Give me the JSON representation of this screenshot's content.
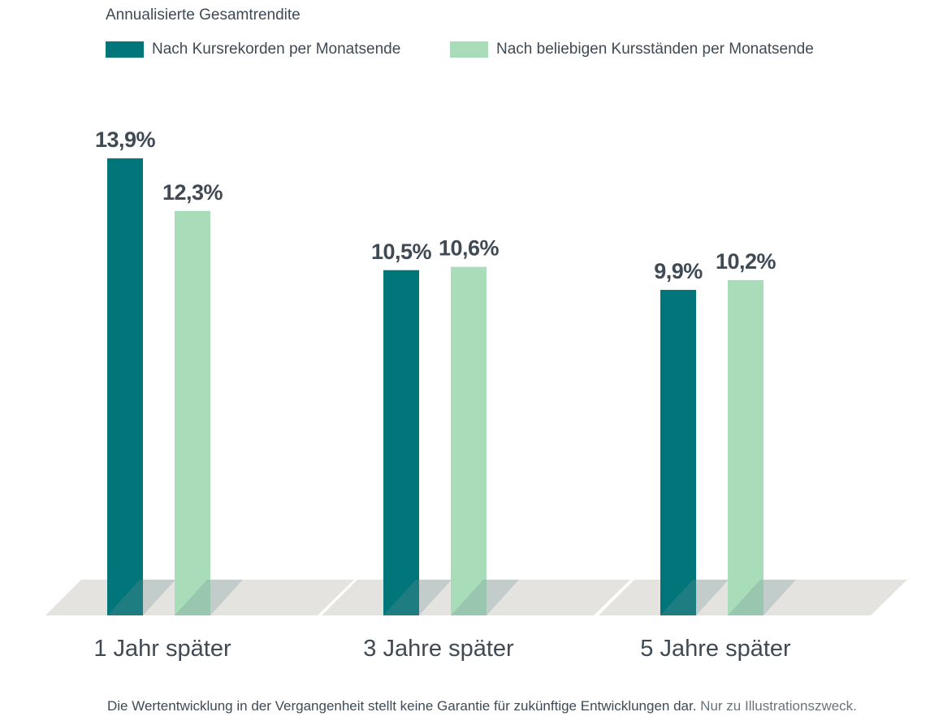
{
  "chart_data": {
    "type": "bar",
    "title": "Annualisierte Gesamtrendite",
    "categories": [
      "1 Jahr später",
      "3 Jahre später",
      "5 Jahre später"
    ],
    "series": [
      {
        "name": "Nach Kursrekorden per Monatsende",
        "color": "#00767b",
        "values": [
          13.9,
          10.5,
          9.9
        ],
        "labels": [
          "13,9%",
          "10,5%",
          "9,9%"
        ]
      },
      {
        "name": "Nach beliebigen Kursständen per Monatsende",
        "color": "#a9dcb9",
        "values": [
          12.3,
          10.6,
          10.2
        ],
        "labels": [
          "12,3%",
          "10,6%",
          "10,2%"
        ]
      }
    ],
    "ylim": [
      0,
      15
    ],
    "grid": false,
    "legend": "top-left"
  },
  "footnote": {
    "main": "Die Wertentwicklung in der Vergangenheit stellt keine Garantie für zukünftige Entwicklungen dar.",
    "secondary": "Nur zu Illustrationszweck."
  }
}
